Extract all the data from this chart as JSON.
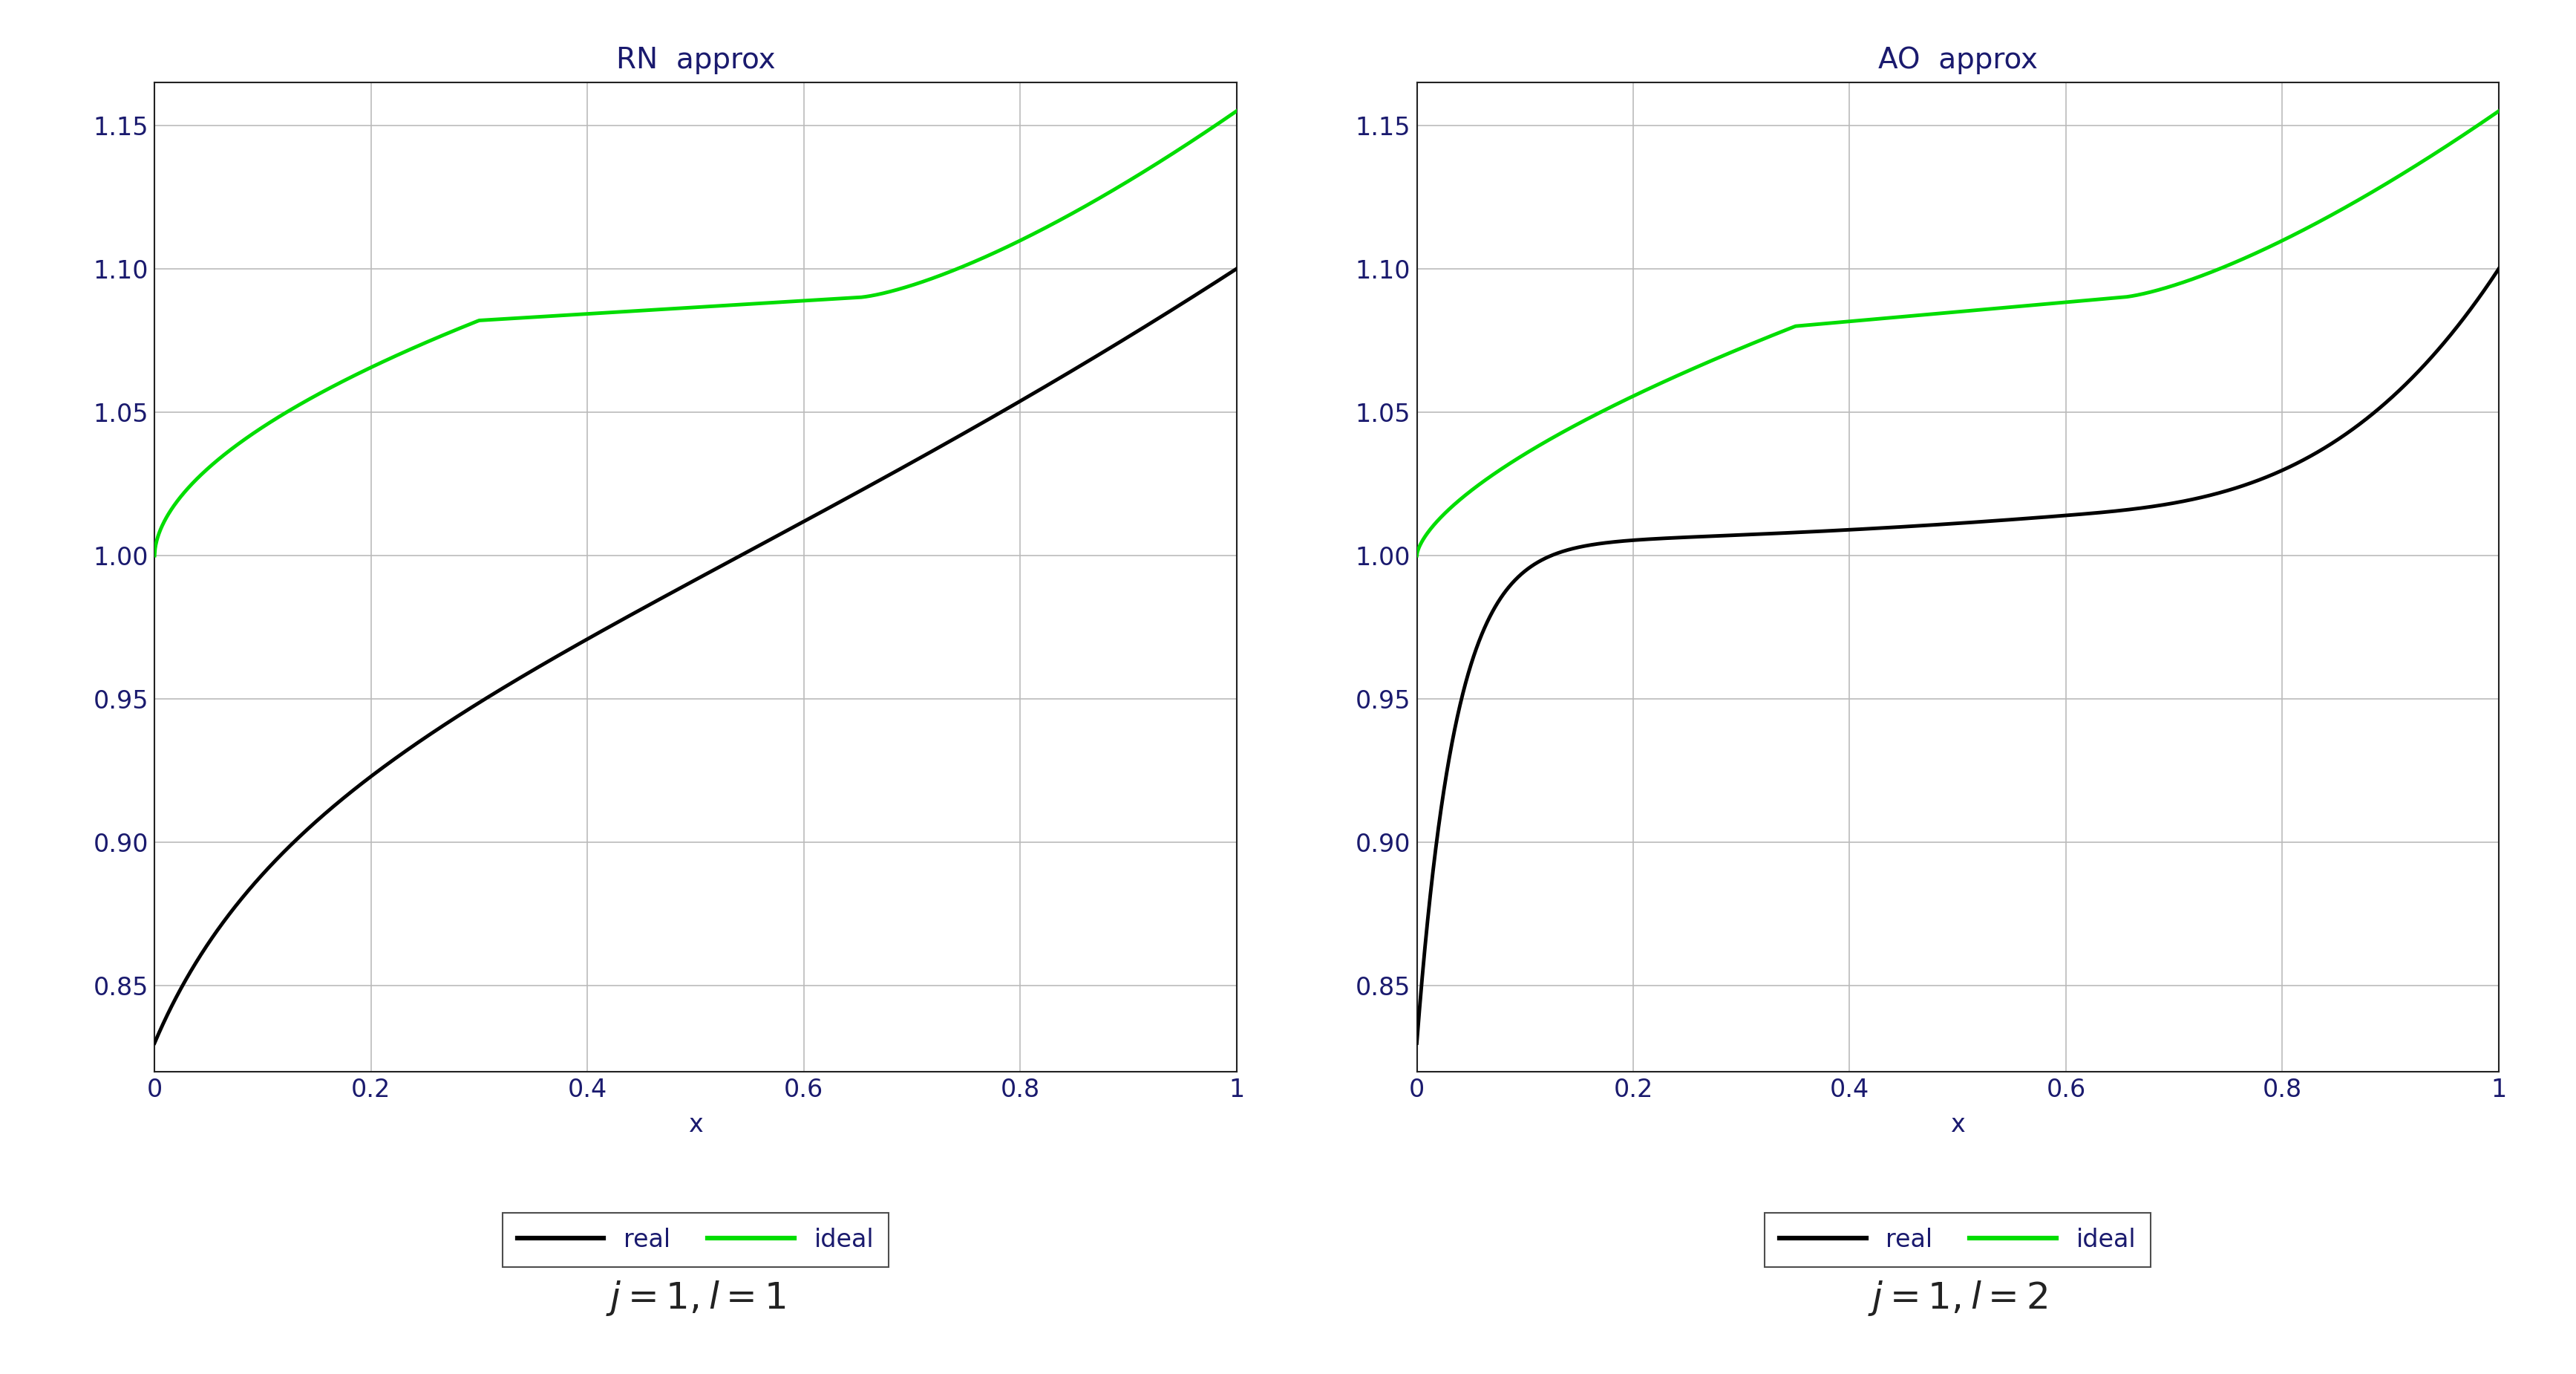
{
  "title_left": "RN  approx",
  "title_right": "AO  approx",
  "xlabel": "x",
  "xlim": [
    0,
    1
  ],
  "ylim": [
    0.82,
    1.165
  ],
  "yticks": [
    0.85,
    0.9,
    0.95,
    1.0,
    1.05,
    1.1,
    1.15
  ],
  "xticks": [
    0,
    0.2,
    0.4,
    0.6,
    0.8,
    1.0
  ],
  "ytick_labels": [
    "0.85",
    "0.90",
    "0.95",
    "1.00",
    "1.05",
    "1.10",
    "1.15"
  ],
  "xtick_labels": [
    "0",
    "0.2",
    "0.4",
    "0.6",
    "0.8",
    "1"
  ],
  "caption_left": "$j = 1, l = 1$",
  "caption_right": "$j = 1, l = 2$",
  "real_color": "#000000",
  "ideal_color": "#00dd00",
  "line_width": 3.5,
  "background_color": "#ffffff",
  "grid_color": "#bbbbbb",
  "title_color": "#1a1a6e",
  "tick_color": "#1a1a6e",
  "axis_label_color": "#1a1a6e",
  "legend_text_color": "#1a1a6e",
  "spine_color": "#222222",
  "tick_fontsize": 24,
  "title_fontsize": 28,
  "xlabel_fontsize": 24,
  "legend_fontsize": 24,
  "caption_fontsize": 36
}
